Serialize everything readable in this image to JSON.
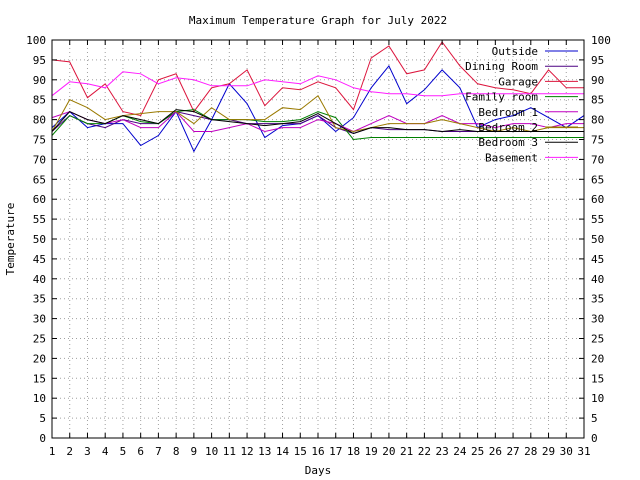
{
  "chart_data": {
    "type": "line",
    "title": "Maximum Temperature Graph for July 2022",
    "xlabel": "Days",
    "ylabel": "Temperature",
    "xlim": [
      1,
      31
    ],
    "ylim": [
      0,
      100
    ],
    "x_ticks": [
      1,
      2,
      3,
      4,
      5,
      6,
      7,
      8,
      9,
      10,
      11,
      12,
      13,
      14,
      15,
      16,
      17,
      18,
      19,
      20,
      21,
      22,
      23,
      24,
      25,
      26,
      27,
      28,
      29,
      30,
      31
    ],
    "y_ticks": [
      0,
      5,
      10,
      15,
      20,
      25,
      30,
      35,
      40,
      45,
      50,
      55,
      60,
      65,
      70,
      75,
      80,
      85,
      90,
      95,
      100
    ],
    "y_axis_mirrored_right": true,
    "grid": true,
    "legend_position": "top-right",
    "x": [
      1,
      2,
      3,
      4,
      5,
      6,
      7,
      8,
      9,
      10,
      11,
      12,
      13,
      14,
      15,
      16,
      17,
      18,
      19,
      20,
      21,
      22,
      23,
      24,
      25,
      26,
      27,
      28,
      29,
      30,
      31
    ],
    "series": [
      {
        "name": "Outside",
        "color": "#0000cd",
        "values": [
          78,
          82,
          78,
          79,
          79,
          73.5,
          76,
          82,
          72,
          80,
          89,
          84,
          75.5,
          78.5,
          79,
          81,
          77,
          80.5,
          88,
          93.5,
          84,
          87.5,
          92.5,
          88,
          78,
          80,
          81,
          83,
          80.5,
          78,
          81
        ]
      },
      {
        "name": "Dining Room",
        "color": "#4b0082",
        "values": [
          77,
          81,
          79,
          78,
          80,
          79,
          79,
          82,
          81,
          80,
          80,
          79,
          79,
          79,
          79,
          81,
          78,
          76.5,
          78,
          77.5,
          77.5,
          77.5,
          77,
          77,
          77,
          77,
          77,
          77,
          77,
          77,
          77
        ]
      },
      {
        "name": "Garage",
        "color": "#dc143c",
        "values": [
          95,
          94.5,
          85.5,
          89,
          82,
          81,
          90,
          91.5,
          82,
          88,
          89,
          92.5,
          83.5,
          88,
          87.5,
          89.5,
          88,
          82.5,
          95.5,
          98.5,
          91.5,
          92.5,
          99.5,
          93.5,
          89,
          88,
          87.5,
          86.5,
          92.5,
          88,
          88
        ]
      },
      {
        "name": "Family room",
        "color": "#008000",
        "values": [
          76,
          81,
          79,
          79,
          81,
          79.5,
          79,
          82,
          82.5,
          80,
          80,
          80,
          79.5,
          79.5,
          80,
          82,
          80.5,
          75,
          75.5,
          75.5,
          75.5,
          75.5,
          75.5,
          75.5,
          75.5,
          75.5,
          75.5,
          75.5,
          75.5,
          75.5,
          75.5
        ]
      },
      {
        "name": "Bedroom 1",
        "color": "#c000c0",
        "values": [
          80.5,
          82,
          80,
          79,
          80,
          78,
          78,
          82,
          77,
          77,
          78,
          79,
          77,
          78,
          78,
          80,
          79,
          77,
          79,
          81,
          79,
          79,
          81,
          79,
          79,
          78,
          79,
          79,
          78,
          79,
          79
        ]
      },
      {
        "name": "Bedroom 2",
        "color": "#9a7a00",
        "values": [
          77,
          85,
          83,
          80,
          81,
          81.5,
          82,
          82,
          79,
          83,
          80,
          80,
          80,
          83,
          82.5,
          86,
          78,
          77,
          78,
          79,
          79,
          79,
          80,
          79,
          78,
          77,
          78,
          77,
          78,
          78,
          78
        ]
      },
      {
        "name": "Bedroom 3",
        "color": "#000000",
        "values": [
          77,
          82,
          80,
          79,
          81,
          80,
          79,
          82.5,
          82,
          80,
          79.5,
          79,
          78.5,
          79,
          79.5,
          81.5,
          79,
          76.5,
          78,
          78,
          77.5,
          77.5,
          77,
          77.5,
          77,
          77,
          77,
          77,
          77,
          77,
          77
        ]
      },
      {
        "name": "Basement",
        "color": "#ff1cff",
        "values": [
          86,
          89.5,
          89,
          88,
          92,
          91.5,
          89,
          90.5,
          90,
          88.5,
          88.5,
          88.5,
          90,
          89.5,
          89,
          91,
          90,
          88,
          87,
          86.5,
          86.5,
          86,
          86,
          86.5,
          86.5,
          86.5,
          86.5,
          86.5,
          86.5,
          86.5,
          86.5
        ]
      }
    ]
  }
}
